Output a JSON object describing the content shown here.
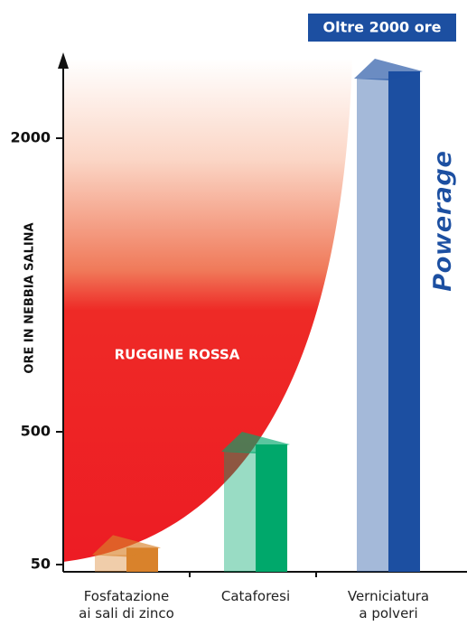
{
  "chart_data": {
    "type": "bar3d",
    "y_label": "ORE IN NEBBIA SALINA",
    "annotation": "Oltre 2000 ore",
    "area_label": "RUGGINE ROSSA",
    "logo": "Powerage",
    "categories": [
      "Fosfatazione ai sali di zinco",
      "Cataforesi",
      "Verniciatura a polveri"
    ],
    "values": [
      150,
      500,
      2500
    ],
    "colors": [
      "#d9822b",
      "#00a86b",
      "#1c4fa1"
    ],
    "ylim": [
      0,
      2500
    ],
    "yticks": [
      50,
      500,
      2000
    ]
  }
}
